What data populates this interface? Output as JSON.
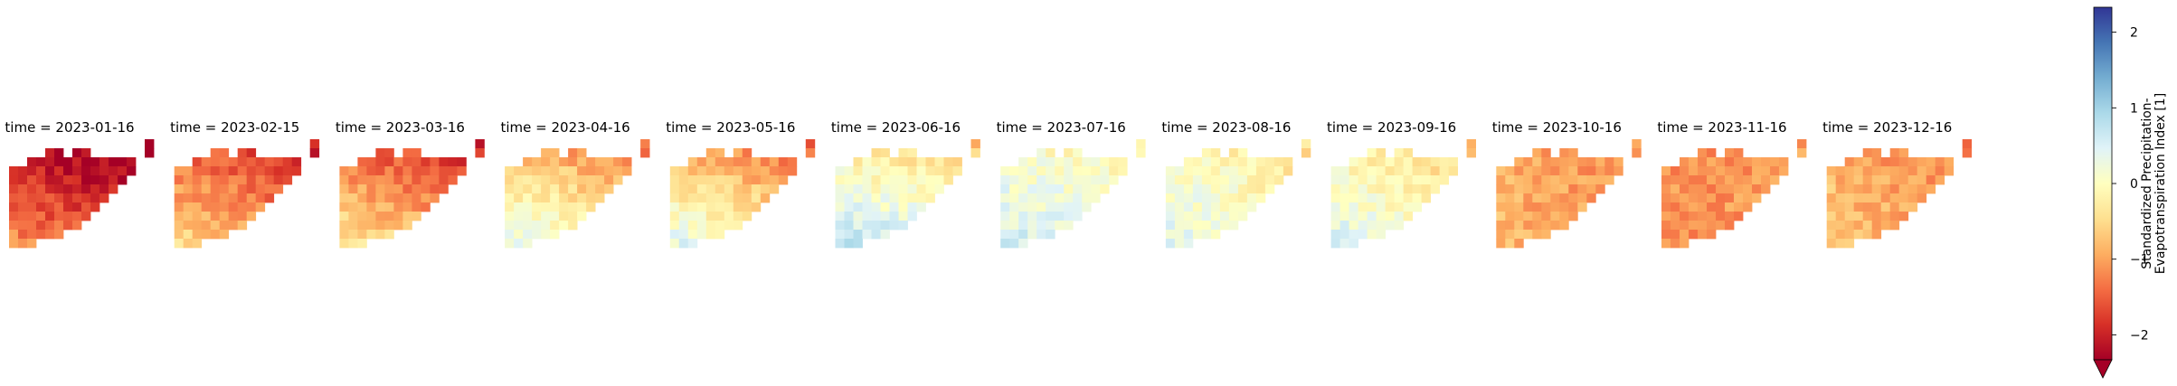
{
  "chart_data": {
    "type": "heatmap",
    "panel_titles": [
      "time = 2023-01-16",
      "time = 2023-02-15",
      "time = 2023-03-16",
      "time = 2023-04-16",
      "time = 2023-05-16",
      "time = 2023-06-16",
      "time = 2023-07-16",
      "time = 2023-08-16",
      "time = 2023-09-16",
      "time = 2023-10-16",
      "time = 2023-11-16",
      "time = 2023-12-16"
    ],
    "colorbar": {
      "label_lines": [
        "Standardized Precipitation-",
        "Evapotranspiration Index [1]"
      ],
      "colormap": "RdYlBu",
      "vmin": -2.33,
      "vmax": 2.33,
      "extend": "min",
      "ticks": [
        -2,
        -1,
        0,
        1,
        2
      ],
      "tick_labels": [
        "−2",
        "−1",
        "0",
        "1",
        "2"
      ]
    },
    "grid_mask": [
      "...............x",
      "....xx.xx......x",
      "..xxxxxxxxxxxx..",
      "xxxxxxxxxxxxxx..",
      "xxxxxxxxxxxxx...",
      "xxxxxxxxxxxx....",
      "xxxxxxxxxxx.....",
      "xxxxxxxxxx......",
      "xxxxxxxxx.......",
      "xxxxxxxx........",
      "xxxxxx..........",
      "xxx............."
    ],
    "monthly_fields": [
      {
        "base": -1.9,
        "trend_lon": -0.5,
        "trend_lat": 1.0
      },
      {
        "base": -1.3,
        "trend_lon": -0.55,
        "trend_lat": 1.0
      },
      {
        "base": -1.2,
        "trend_lon": -0.55,
        "trend_lat": 1.15
      },
      {
        "base": -0.5,
        "trend_lon": -0.6,
        "trend_lat": 1.3
      },
      {
        "base": -0.6,
        "trend_lon": -0.6,
        "trend_lat": 1.4
      },
      {
        "base": 0.05,
        "trend_lon": -0.4,
        "trend_lat": 1.1
      },
      {
        "base": 0.2,
        "trend_lon": -0.2,
        "trend_lat": 0.5
      },
      {
        "base": 0.0,
        "trend_lon": -0.4,
        "trend_lat": 0.5
      },
      {
        "base": -0.1,
        "trend_lon": -0.5,
        "trend_lat": 0.6
      },
      {
        "base": -1.0,
        "trend_lon": -0.2,
        "trend_lat": 0.1
      },
      {
        "base": -1.1,
        "trend_lon": 0.0,
        "trend_lat": 0.0
      },
      {
        "base": -1.0,
        "trend_lon": -0.4,
        "trend_lat": 0.2
      }
    ]
  }
}
